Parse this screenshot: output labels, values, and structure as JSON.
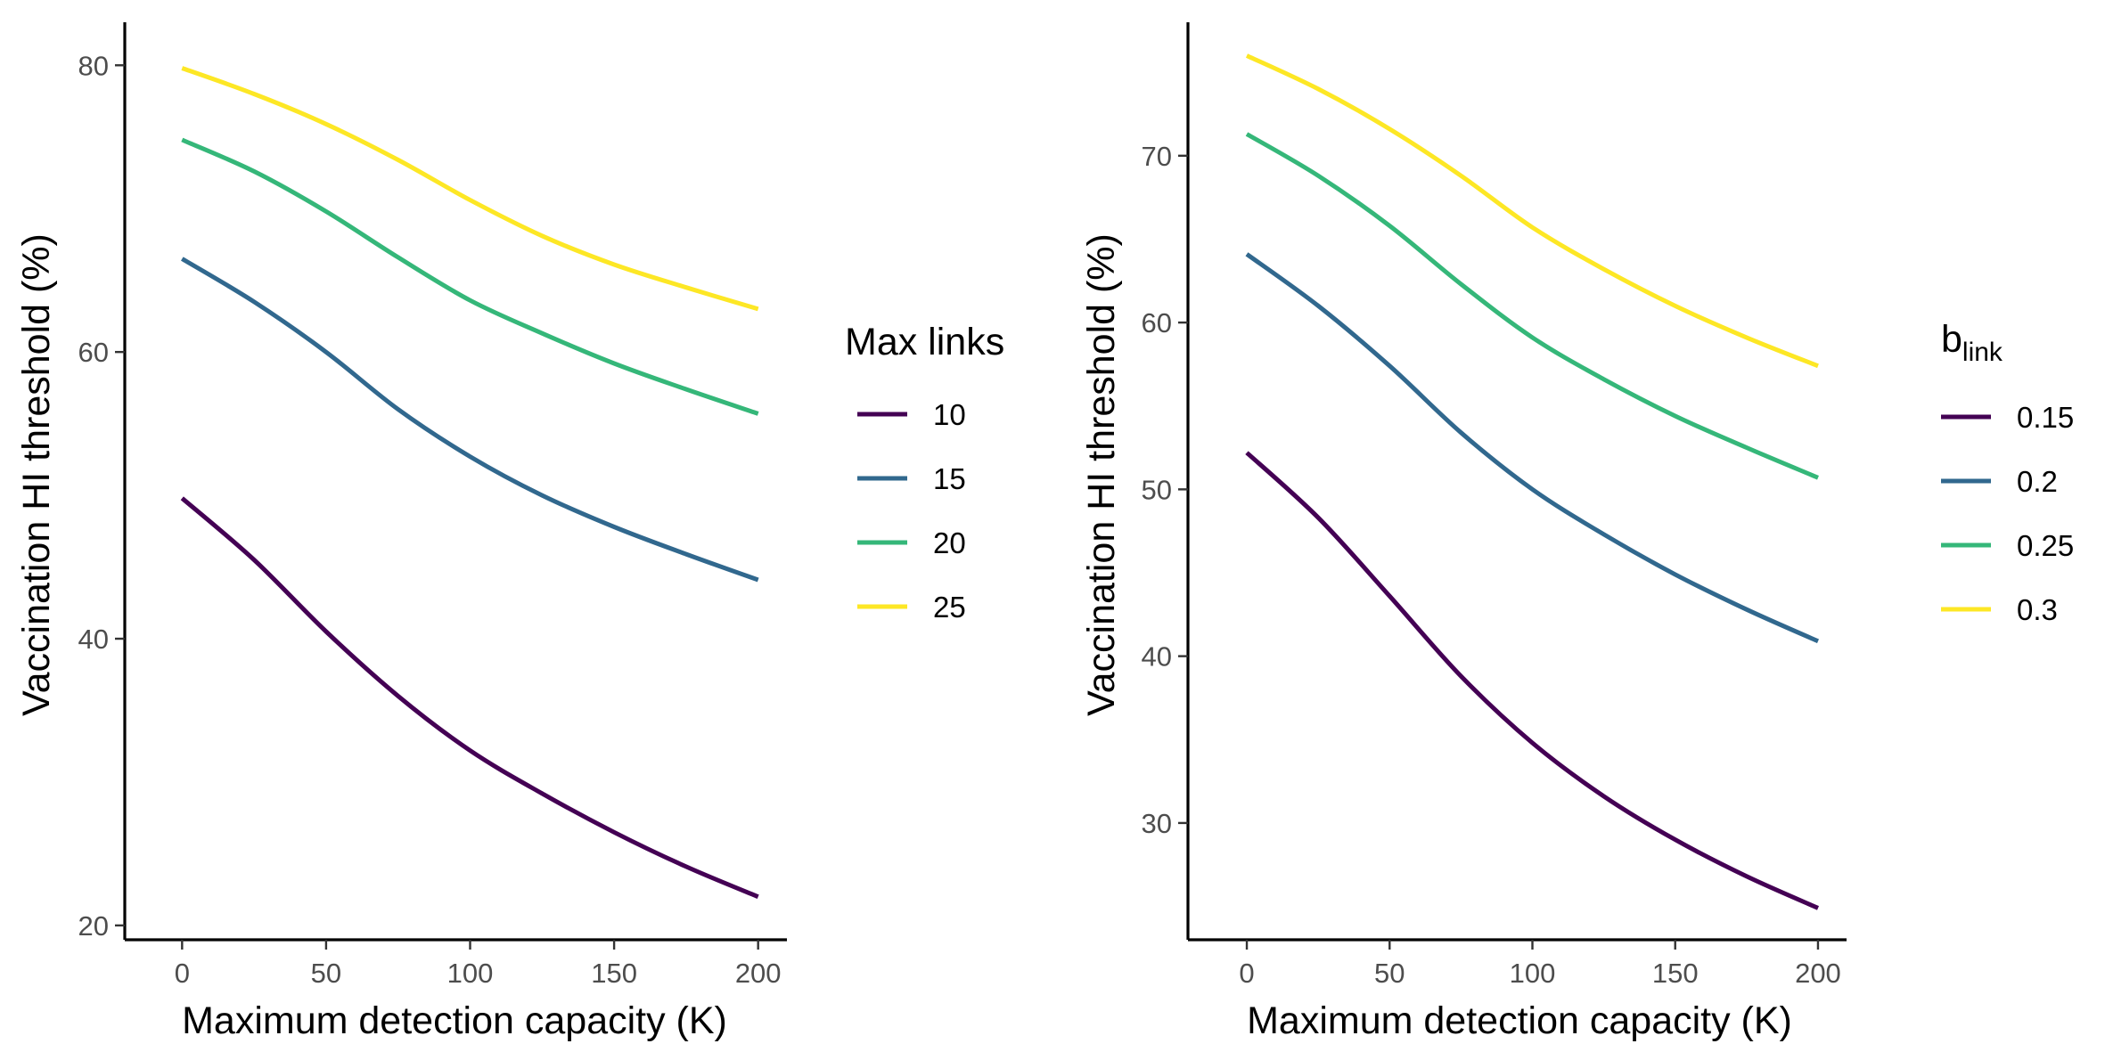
{
  "chart_data": [
    {
      "type": "line",
      "xlabel": "Maximum detection capacity (K)",
      "ylabel": "Vaccination HI threshold (%)",
      "xlim": [
        -10,
        210
      ],
      "ylim": [
        19,
        83
      ],
      "x_ticks": [
        0,
        50,
        100,
        150,
        200
      ],
      "y_ticks": [
        20,
        40,
        60,
        80
      ],
      "grid": false,
      "legend": {
        "title": "Max links",
        "title_sub": "",
        "placement": "right"
      },
      "x": [
        0,
        25,
        50,
        75,
        100,
        125,
        150,
        175,
        200
      ],
      "series": [
        {
          "name": "10",
          "color": "#440154",
          "values": [
            49.8,
            45.5,
            40.5,
            36.0,
            32.2,
            29.2,
            26.5,
            24.1,
            22.0
          ]
        },
        {
          "name": "15",
          "color": "#31688E",
          "values": [
            66.5,
            63.5,
            60.0,
            56.0,
            52.7,
            50.0,
            47.8,
            45.9,
            44.1
          ]
        },
        {
          "name": "20",
          "color": "#35B779",
          "values": [
            74.8,
            72.6,
            69.8,
            66.6,
            63.6,
            61.3,
            59.2,
            57.4,
            55.7
          ]
        },
        {
          "name": "25",
          "color": "#FDE725",
          "values": [
            79.8,
            78.0,
            75.9,
            73.4,
            70.6,
            68.1,
            66.1,
            64.5,
            63.0
          ]
        }
      ]
    },
    {
      "type": "line",
      "xlabel": "Maximum detection capacity (K)",
      "ylabel": "Vaccination HI threshold (%)",
      "xlim": [
        -10,
        210
      ],
      "ylim": [
        23,
        78
      ],
      "x_ticks": [
        0,
        50,
        100,
        150,
        200
      ],
      "y_ticks": [
        30,
        40,
        50,
        60,
        70
      ],
      "grid": false,
      "legend": {
        "title": "b",
        "title_sub": "link",
        "placement": "right"
      },
      "x": [
        0,
        25,
        50,
        75,
        100,
        125,
        150,
        175,
        200
      ],
      "series": [
        {
          "name": "0.15",
          "color": "#440154",
          "values": [
            52.2,
            48.3,
            43.6,
            38.8,
            34.8,
            31.6,
            29.0,
            26.8,
            24.9
          ]
        },
        {
          "name": "0.2",
          "color": "#31688E",
          "values": [
            64.1,
            61.0,
            57.4,
            53.4,
            50.0,
            47.3,
            44.9,
            42.8,
            40.9
          ]
        },
        {
          "name": "0.25",
          "color": "#35B779",
          "values": [
            71.3,
            68.8,
            65.8,
            62.3,
            59.1,
            56.6,
            54.4,
            52.5,
            50.7
          ]
        },
        {
          "name": "0.3",
          "color": "#FDE725",
          "values": [
            76.0,
            74.0,
            71.6,
            68.8,
            65.7,
            63.2,
            61.0,
            59.1,
            57.4
          ]
        }
      ]
    }
  ]
}
